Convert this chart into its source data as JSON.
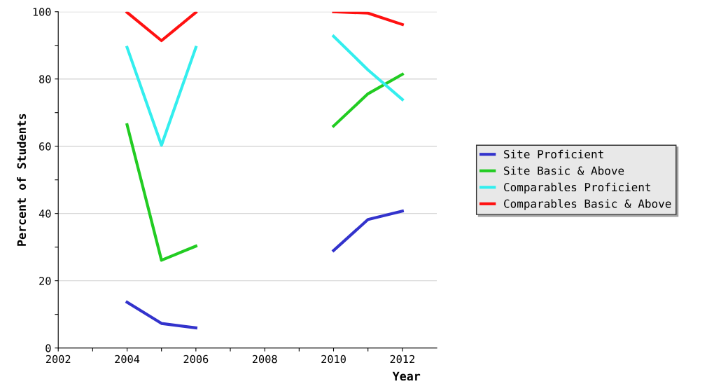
{
  "chart_data": {
    "type": "line",
    "xlabel": "Year",
    "ylabel": "Percent of Students",
    "x": [
      2004,
      2005,
      2006,
      2007,
      2008,
      2009,
      2010,
      2011,
      2012
    ],
    "series": [
      {
        "name": "Site Proficient",
        "color": "#3333cc",
        "values": [
          13.6,
          7.3,
          6.0,
          null,
          null,
          null,
          29,
          38.2,
          40.7
        ]
      },
      {
        "name": "Site Basic & Above",
        "color": "#22cc22",
        "values": [
          66.4,
          26.1,
          30.3,
          null,
          null,
          null,
          66,
          75.6,
          81.4
        ]
      },
      {
        "name": "Comparables Proficient",
        "color": "#33eeee",
        "values": [
          89.4,
          60.3,
          89.4,
          null,
          null,
          null,
          92.7,
          82.7,
          73.9
        ]
      },
      {
        "name": "Comparables Basic & Above",
        "color": "#ff1111",
        "values": [
          99.8,
          91.4,
          99.8,
          null,
          null,
          null,
          100,
          99.6,
          96.2
        ]
      }
    ],
    "xlim": [
      2002,
      2013
    ],
    "xticks": [
      2002,
      {
        "value": 2003,
        "label": null
      },
      2004,
      {
        "value": 2005,
        "label": null
      },
      2006,
      {
        "value": 2007,
        "label": null
      },
      2008,
      {
        "value": 2009,
        "label": null
      },
      2010,
      {
        "value": 2011,
        "label": null
      },
      2012
    ],
    "ylim": [
      0,
      100
    ],
    "yticks": [
      0,
      {
        "value": 10,
        "label": null
      },
      20,
      {
        "value": 30,
        "label": null
      },
      40,
      {
        "value": 50,
        "label": null
      },
      60,
      {
        "value": 70,
        "label": null
      },
      80,
      {
        "value": 90,
        "label": null
      },
      100
    ],
    "grid": "y",
    "legend": "right",
    "marker": "none",
    "line_style": "solid"
  }
}
